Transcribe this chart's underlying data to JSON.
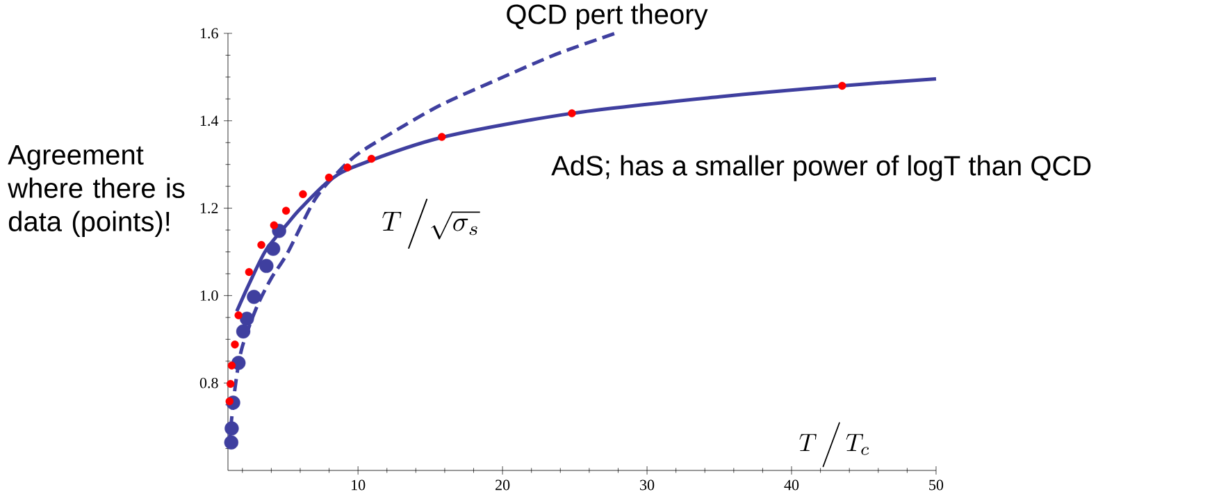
{
  "chart_data": {
    "type": "scatter",
    "marker": "circle",
    "xlabel": "T\\,\\Big/\\,T_{c}",
    "ylabel": "T\\,\\Big/\\sqrt{\\sigma_{s}}",
    "xlim": [
      1,
      50
    ],
    "ylim": [
      0.6,
      1.6
    ],
    "xticks": [
      {
        "value": 2,
        "label": null
      },
      {
        "value": 4,
        "label": null
      },
      {
        "value": 6,
        "label": null
      },
      {
        "value": 8,
        "label": null
      },
      10,
      {
        "value": 12,
        "label": null
      },
      {
        "value": 14,
        "label": null
      },
      {
        "value": 16,
        "label": null
      },
      {
        "value": 18,
        "label": null
      },
      20,
      {
        "value": 22,
        "label": null
      },
      {
        "value": 24,
        "label": null
      },
      {
        "value": 26,
        "label": null
      },
      {
        "value": 28,
        "label": null
      },
      30,
      {
        "value": 32,
        "label": null
      },
      {
        "value": 34,
        "label": null
      },
      {
        "value": 36,
        "label": null
      },
      {
        "value": 38,
        "label": null
      },
      40,
      {
        "value": 42,
        "label": null
      },
      {
        "value": 44,
        "label": null
      },
      {
        "value": 46,
        "label": null
      },
      {
        "value": 48,
        "label": null
      },
      50
    ],
    "yticks": [
      {
        "value": 0.65,
        "label": null
      },
      {
        "value": 0.7,
        "label": null
      },
      {
        "value": 0.75,
        "label": null
      },
      {
        "value": 0.8,
        "label": "0.8"
      },
      {
        "value": 0.85,
        "label": null
      },
      {
        "value": 0.9,
        "label": null
      },
      {
        "value": 0.95,
        "label": null
      },
      {
        "value": 1.0,
        "label": "1.0"
      },
      {
        "value": 1.05,
        "label": null
      },
      {
        "value": 1.1,
        "label": null
      },
      {
        "value": 1.15,
        "label": null
      },
      {
        "value": 1.2,
        "label": "1.2"
      },
      {
        "value": 1.25,
        "label": null
      },
      {
        "value": 1.3,
        "label": null
      },
      {
        "value": 1.35,
        "label": null
      },
      {
        "value": 1.4,
        "label": "1.4"
      },
      {
        "value": 1.45,
        "label": null
      },
      {
        "value": 1.5,
        "label": null
      },
      {
        "value": 1.55,
        "label": null
      },
      {
        "value": 1.6,
        "label": "1.6"
      }
    ],
    "series": [
      {
        "type": "line",
        "name": "AdS; has a smaller power of logT than QCD",
        "color": "#3f3f9f",
        "marker": "none",
        "line_style": "solid",
        "x": [
          1.61,
          2.47,
          3.63,
          5.13,
          6.05,
          7.98,
          9.9,
          15.8,
          24.8,
          35,
          43.5,
          50
        ],
        "values": [
          0.964,
          1.027,
          1.104,
          1.165,
          1.2,
          1.262,
          1.297,
          1.362,
          1.417,
          1.455,
          1.48,
          1.496
        ]
      },
      {
        "type": "line",
        "name": "QCD pert theory",
        "color": "#3f3f9f",
        "marker": "none",
        "line_style": "dashed",
        "x": [
          1.06,
          1.48,
          1.96,
          2.97,
          3.97,
          5.13,
          7.02,
          8.63,
          10.07,
          12.48,
          15.66,
          19.7,
          23.7,
          27.8
        ],
        "values": [
          0.653,
          0.786,
          0.879,
          0.972,
          1.038,
          1.098,
          1.22,
          1.283,
          1.326,
          1.375,
          1.435,
          1.495,
          1.552,
          1.6
        ]
      },
      {
        "color": "#ff0000",
        "x": [
          1.11,
          1.18,
          1.26,
          1.48,
          1.73,
          2.46,
          3.31,
          4.19,
          5.02,
          6.19,
          7.99,
          9.27,
          10.93,
          15.8,
          24.8,
          43.5
        ],
        "values": [
          0.758,
          0.798,
          0.84,
          0.888,
          0.955,
          1.054,
          1.116,
          1.161,
          1.194,
          1.232,
          1.27,
          1.293,
          1.313,
          1.363,
          1.417,
          1.48
        ]
      },
      {
        "color": "#3f3f9f",
        "x": [
          1.23,
          1.26,
          1.36,
          1.73,
          2.06,
          2.31,
          2.8,
          3.66,
          4.13,
          4.54
        ],
        "values": [
          0.664,
          0.696,
          0.755,
          0.846,
          0.918,
          0.947,
          0.997,
          1.068,
          1.107,
          1.148
        ]
      }
    ],
    "annotations": [
      "Agreement where there is data (points)!"
    ]
  }
}
